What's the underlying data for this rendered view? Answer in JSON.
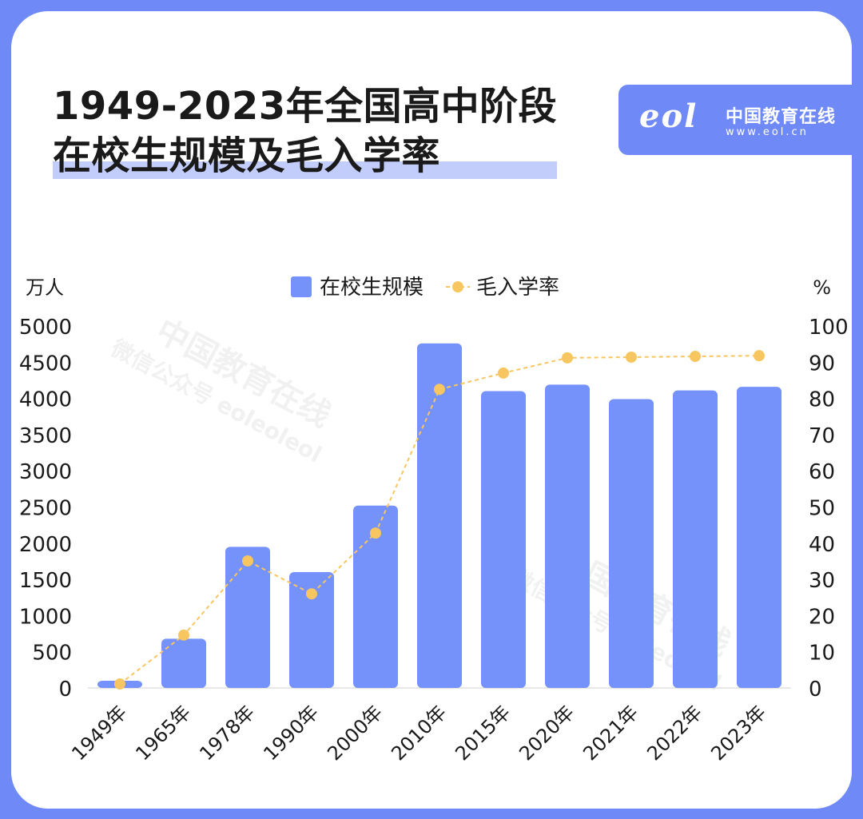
{
  "title": {
    "line1": "1949-2023年全国高中阶段",
    "line2": "在校生规模及毛入学率"
  },
  "logo": {
    "mark": "eol",
    "name": "中国教育在线",
    "url": "www.eol.cn"
  },
  "watermarks": [
    {
      "main": "中国教育在线",
      "sub": "微信公众号 eoleoleol"
    },
    {
      "main": "中国教育在线",
      "sub": "微信公众号 eoleoleol"
    }
  ],
  "colors": {
    "frame": "#6f89f7",
    "bar": "#7592fb",
    "line": "#f7c660",
    "text": "#1a1a1a",
    "highlight": "#c2cdfb"
  },
  "chart_data": {
    "type": "bar",
    "categories": [
      "1949年",
      "1965年",
      "1978年",
      "1990年",
      "2000年",
      "2010年",
      "2015年",
      "2020年",
      "2021年",
      "2022年",
      "2023年"
    ],
    "series": [
      {
        "name": "在校生规模",
        "type": "bar",
        "axis": "left",
        "values": [
          100,
          680,
          1950,
          1600,
          2520,
          4760,
          4100,
          4190,
          3990,
          4110,
          4160
        ]
      },
      {
        "name": "毛入学率",
        "type": "line",
        "axis": "right",
        "values": [
          1.1,
          14.6,
          35.1,
          26.0,
          42.8,
          82.5,
          87.0,
          91.2,
          91.4,
          91.6,
          91.8
        ]
      }
    ],
    "y_left": {
      "unit": "万人",
      "ylim": [
        0,
        5000
      ],
      "ticks": [
        "0",
        "500",
        "1000",
        "1500",
        "2000",
        "2500",
        "3000",
        "3500",
        "4000",
        "4500",
        "5000"
      ]
    },
    "y_right": {
      "unit": "%",
      "ylim": [
        0,
        100
      ],
      "ticks": [
        "0",
        "10",
        "20",
        "30",
        "40",
        "50",
        "60",
        "70",
        "80",
        "90",
        "100"
      ]
    },
    "legend_position": "top-center",
    "grid": false
  }
}
